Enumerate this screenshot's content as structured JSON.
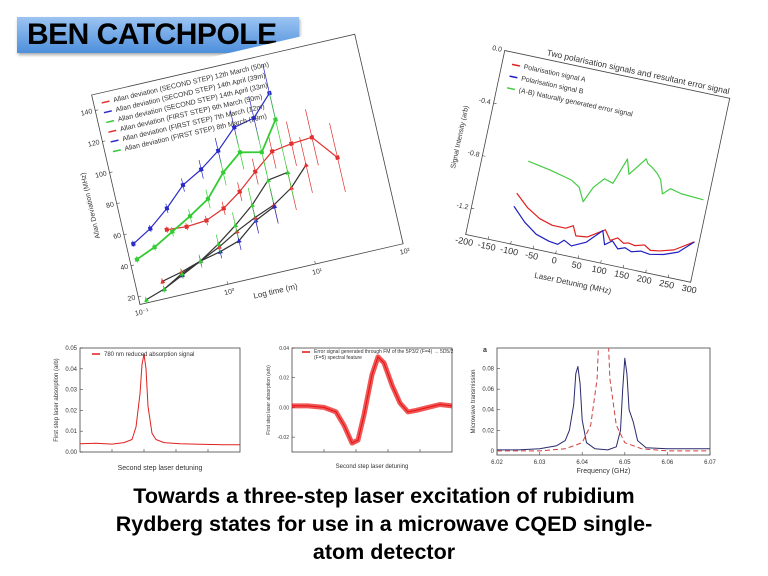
{
  "banner": {
    "name": "BEN CATCHPOLE",
    "color": "#5b9be0"
  },
  "caption": {
    "lines": [
      "Towards a three-step laser excitation of rubidium",
      "Rydberg states for use in a microwave CQED single-",
      "atom detector"
    ]
  },
  "chart_data": [
    {
      "type": "line",
      "xlabel": "Log time (m)",
      "ylabel": "Allan Deviation (MHz)",
      "xscale": "log",
      "xlim": [
        0.1,
        100
      ],
      "ylim": [
        15,
        150
      ],
      "xticks": [
        {
          "v": 0.1,
          "label": "10⁻¹"
        },
        {
          "v": 1,
          "label": "10⁰"
        },
        {
          "v": 10,
          "label": "10¹"
        },
        {
          "v": 100,
          "label": "10²"
        }
      ],
      "yticks": [
        20,
        40,
        60,
        80,
        100,
        120,
        140
      ],
      "legend": "top-left",
      "series": [
        {
          "name": "Allan deviation (SECOND STEP) 12th March (50m)",
          "color": "#e03030",
          "marker": "square",
          "error_bars": true,
          "x": [
            0.3,
            0.5,
            0.85,
            1.4,
            2.3,
            3.8,
            6.5,
            11,
            19,
            32
          ],
          "y": [
            57,
            56,
            57,
            62,
            70,
            80,
            90,
            92,
            93,
            77
          ]
        },
        {
          "name": "Allan deviation (SECOND STEP) 14th April (39m)",
          "color": "#2a2ac8",
          "marker": "square",
          "error_bars": true,
          "x": [
            0.12,
            0.2,
            0.34,
            0.58,
            1,
            1.7,
            2.9,
            5,
            8.5
          ],
          "y": [
            53,
            60,
            70,
            82,
            89,
            98,
            110,
            113,
            126
          ]
        },
        {
          "name": "Allan deviation (SECOND STEP) 14th April (33m)",
          "color": "#33cc33",
          "marker": "square",
          "thick": true,
          "error_bars": true,
          "x": [
            0.12,
            0.2,
            0.34,
            0.58,
            1,
            1.7,
            2.9,
            5,
            8.5
          ],
          "y": [
            43,
            48,
            55,
            62,
            70,
            84,
            94,
            91,
            109
          ]
        },
        {
          "name": "Allan deviation (FIRST STEP) 6th March (50m)",
          "color": "#e03030",
          "marker": "triangle",
          "error_bars": true,
          "x": [
            0.2,
            0.34,
            0.58,
            1,
            1.7,
            2.9,
            5,
            8.5,
            14
          ],
          "y": [
            26,
            29,
            33,
            39,
            46,
            52,
            57,
            65,
            77
          ]
        },
        {
          "name": "Allan deviation (FIRST STEP) 7th March (12m)",
          "color": "#2a2ac8",
          "marker": "triangle",
          "error_bars": true,
          "x": [
            0.2,
            0.34,
            0.58,
            1,
            1.7,
            2.9,
            5
          ],
          "y": [
            21,
            27,
            33,
            36,
            40,
            50,
            56
          ]
        },
        {
          "name": "Allan deviation (FIRST STEP) 8th March (29m)",
          "color": "#33cc33",
          "marker": "triangle",
          "error_bars": true,
          "x": [
            0.12,
            0.2,
            0.34,
            0.58,
            1,
            1.7,
            2.9,
            5,
            8.5
          ],
          "y": [
            17,
            21,
            28,
            33,
            41,
            50,
            60,
            73,
            75
          ]
        }
      ]
    },
    {
      "type": "line",
      "title": "Two polarisation signals and resultant error signal",
      "xlabel": "Laser Detuning (MHz)",
      "ylabel": "Signal Intensity (arb)",
      "xlim": [
        -200,
        300
      ],
      "ylim": [
        -1.4,
        0.0
      ],
      "xticks": [
        -200,
        -150,
        -100,
        -50,
        0,
        50,
        100,
        150,
        200,
        250,
        300
      ],
      "yticks": [
        0.0,
        -0.4,
        -0.8,
        -1.2
      ],
      "ytick_labels": [
        "0.0",
        "-0.4",
        "-0.8",
        "-1.2"
      ],
      "legend": "top-left",
      "series": [
        {
          "name": "Polarisation signal A",
          "color": "#e02020",
          "x": [
            -110,
            -80,
            -50,
            -20,
            10,
            25,
            35,
            60,
            95,
            110,
            125,
            140,
            150,
            165,
            185,
            200,
            220,
            250,
            290
          ],
          "y": [
            -1.02,
            -1.11,
            -1.17,
            -1.2,
            -1.2,
            -1.17,
            -1.24,
            -1.23,
            -1.15,
            -1.22,
            -1.19,
            -1.22,
            -1.21,
            -1.22,
            -1.2,
            -1.23,
            -1.22,
            -1.19,
            -1.1
          ]
        },
        {
          "name": "Polarisation signal B",
          "color": "#2020c0",
          "x": [
            -110,
            -80,
            -50,
            -20,
            0,
            12,
            30,
            60,
            90,
            100,
            115,
            130,
            145,
            160,
            180,
            200,
            230,
            260,
            290
          ],
          "y": [
            -1.12,
            -1.22,
            -1.29,
            -1.32,
            -1.33,
            -1.29,
            -1.32,
            -1.27,
            -1.16,
            -1.26,
            -1.22,
            -1.27,
            -1.25,
            -1.27,
            -1.25,
            -1.26,
            -1.24,
            -1.2,
            -1.1
          ]
        },
        {
          "name": "(A-B) Naturally generated error signal",
          "color": "#44cc44",
          "x": [
            -100,
            -50,
            0,
            20,
            35,
            50,
            70,
            90,
            110,
            120,
            150,
            155,
            165,
            180,
            190,
            200,
            215,
            240,
            290
          ],
          "y": [
            -0.77,
            -0.8,
            -0.84,
            -0.88,
            -0.98,
            -0.86,
            -0.78,
            -0.8,
            -0.6,
            -0.71,
            -0.57,
            -0.6,
            -0.62,
            -0.66,
            -0.7,
            -0.8,
            -0.75,
            -0.77,
            -0.78
          ]
        }
      ]
    },
    {
      "type": "line",
      "xlabel": "Second step laser detuning",
      "ylabel": "First step laser absorption (arb)",
      "ylim": [
        0.0,
        0.05
      ],
      "yticks": [
        0.0,
        0.01,
        0.02,
        0.03,
        0.04,
        0.05
      ],
      "ytick_labels": [
        "0.00",
        "0.01",
        "0.02",
        "0.03",
        "0.04",
        "0.05"
      ],
      "xlim": [
        0,
        40
      ],
      "legend": "top-left",
      "series": [
        {
          "name": "780 nm reduced absorption signal",
          "color": "#e02020",
          "x": [
            0,
            4,
            8,
            11,
            13,
            14,
            15,
            15.5,
            16,
            16.5,
            17,
            18,
            19,
            21,
            25,
            30,
            36,
            40
          ],
          "y": [
            0.004,
            0.0042,
            0.0038,
            0.0045,
            0.006,
            0.012,
            0.028,
            0.042,
            0.047,
            0.04,
            0.022,
            0.009,
            0.006,
            0.0045,
            0.004,
            0.0037,
            0.0035,
            0.0035
          ]
        }
      ]
    },
    {
      "type": "line",
      "xlabel": "Second step laser detuning",
      "ylabel": "First step laser absorption (arb)",
      "ylim": [
        -0.03,
        0.04
      ],
      "yticks": [
        0.04,
        0.02,
        0.0,
        -0.02
      ],
      "ytick_labels": [
        "0.04",
        "0.02",
        "0.00",
        "-0.02"
      ],
      "xlim": [
        0,
        40
      ],
      "legend": "top-left",
      "series": [
        {
          "name": "Error signal generated through FM of the 5P3/2 (F=4) → 5D5/2 (F=5) spectral feature",
          "color": "#e81010",
          "x": [
            0,
            4,
            8,
            11,
            13,
            15,
            16.5,
            18,
            20,
            21.5,
            23,
            25,
            27,
            29,
            31,
            34,
            37,
            40
          ],
          "y": [
            0.001,
            0.001,
            0.0,
            -0.003,
            -0.012,
            -0.024,
            -0.022,
            -0.005,
            0.022,
            0.034,
            0.03,
            0.015,
            0.003,
            -0.003,
            -0.002,
            0.0,
            0.002,
            0.001
          ]
        }
      ]
    },
    {
      "type": "line",
      "panel_label": "a",
      "xlabel": "Frequency (GHz)",
      "ylabel": "Microwave transmission",
      "xlim": [
        6.02,
        6.07
      ],
      "ylim": [
        -0.004,
        0.1
      ],
      "xticks": [
        6.02,
        6.03,
        6.04,
        6.05,
        6.06,
        6.07
      ],
      "xtick_labels": [
        "6.02",
        "6.03",
        "6.04",
        "6.05",
        "6.06",
        "6.07"
      ],
      "yticks": [
        0,
        0.02,
        0.04,
        0.06,
        0.08
      ],
      "ytick_labels": [
        "0",
        "0.02",
        "0.04",
        "0.06",
        "0.08"
      ],
      "series": [
        {
          "color": "#2a2a6e",
          "x": [
            6.02,
            6.025,
            6.03,
            6.034,
            6.036,
            6.037,
            6.038,
            6.0385,
            6.039,
            6.0395,
            6.04,
            6.041,
            6.043,
            6.046,
            6.048,
            6.049,
            6.0495,
            6.05,
            6.0505,
            6.051,
            6.052,
            6.053,
            6.055,
            6.06,
            6.065,
            6.07
          ],
          "y": [
            0.001,
            0.001,
            0.002,
            0.005,
            0.01,
            0.02,
            0.045,
            0.075,
            0.082,
            0.065,
            0.03,
            0.008,
            0.002,
            0.001,
            0.004,
            0.02,
            0.06,
            0.09,
            0.075,
            0.04,
            0.028,
            0.01,
            0.003,
            0.002,
            0.002,
            0.002
          ]
        },
        {
          "color": "#d04040",
          "dashed": true,
          "x": [
            6.02,
            6.03,
            6.036,
            6.04,
            6.042,
            6.0435,
            6.044,
            6.046,
            6.0465,
            6.048,
            6.05,
            6.054,
            6.06,
            6.07
          ],
          "y": [
            0.0,
            0.0,
            0.002,
            0.008,
            0.025,
            0.07,
            0.12,
            0.12,
            0.07,
            0.025,
            0.008,
            0.002,
            0.0,
            0.0
          ]
        }
      ]
    }
  ]
}
